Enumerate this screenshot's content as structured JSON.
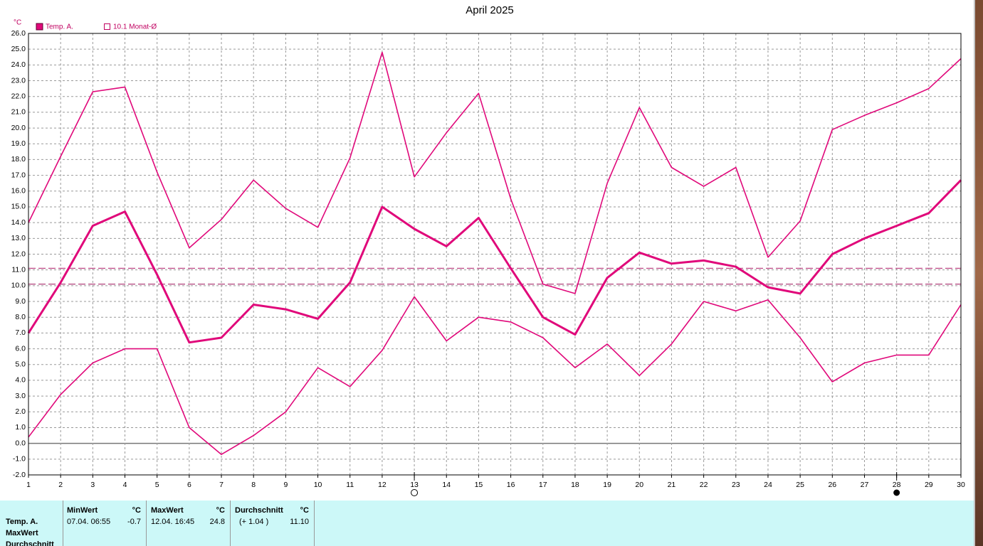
{
  "chart_data": {
    "type": "line",
    "title": "April 2025",
    "y_unit": "°C",
    "legend": [
      "Temp. A.",
      "10.1 Monat-Ø"
    ],
    "x": [
      1,
      2,
      3,
      4,
      5,
      6,
      7,
      8,
      9,
      10,
      11,
      12,
      13,
      14,
      15,
      16,
      17,
      18,
      19,
      20,
      21,
      22,
      23,
      24,
      25,
      26,
      27,
      28,
      29,
      30
    ],
    "xlim": [
      1,
      30
    ],
    "xticks": [
      1,
      2,
      3,
      4,
      5,
      6,
      7,
      8,
      9,
      10,
      11,
      12,
      13,
      14,
      15,
      16,
      17,
      18,
      19,
      20,
      21,
      22,
      23,
      24,
      25,
      26,
      27,
      28,
      29,
      30
    ],
    "ylim": [
      -2,
      26
    ],
    "yticks": [
      {
        "value": -2,
        "label": "-2.0"
      },
      {
        "value": -1,
        "label": "-1.0"
      },
      {
        "value": 0,
        "label": "0.0"
      },
      {
        "value": 1,
        "label": "1.0"
      },
      {
        "value": 2,
        "label": "2.0"
      },
      {
        "value": 3,
        "label": "3.0"
      },
      {
        "value": 4,
        "label": "4.0"
      },
      {
        "value": 5,
        "label": "5.0"
      },
      {
        "value": 6,
        "label": "6.0"
      },
      {
        "value": 7,
        "label": "7.0"
      },
      {
        "value": 8,
        "label": "8.0"
      },
      {
        "value": 9,
        "label": "9.0"
      },
      {
        "value": 10,
        "label": "10.0"
      },
      {
        "value": 11,
        "label": "11.0"
      },
      {
        "value": 12,
        "label": "12.0"
      },
      {
        "value": 13,
        "label": "13.0"
      },
      {
        "value": 14,
        "label": "14.0"
      },
      {
        "value": 15,
        "label": "15.0"
      },
      {
        "value": 16,
        "label": "16.0"
      },
      {
        "value": 17,
        "label": "17.0"
      },
      {
        "value": 18,
        "label": "18.0"
      },
      {
        "value": 19,
        "label": "19.0"
      },
      {
        "value": 20,
        "label": "20.0"
      },
      {
        "value": 21,
        "label": "21.0"
      },
      {
        "value": 22,
        "label": "22.0"
      },
      {
        "value": 23,
        "label": "23.0"
      },
      {
        "value": 24,
        "label": "24.0"
      },
      {
        "value": 25,
        "label": "25.0"
      },
      {
        "value": 26,
        "label": "26.0"
      }
    ],
    "grid": true,
    "series": [
      {
        "color": "#e0087a",
        "width": 1.6,
        "values": [
          14.0,
          18.2,
          22.3,
          22.6,
          17.2,
          12.4,
          14.2,
          16.7,
          14.9,
          13.7,
          18.1,
          24.8,
          16.9,
          19.7,
          22.2,
          15.5,
          10.1,
          9.5,
          16.5,
          21.3,
          17.5,
          16.3,
          17.5,
          11.8,
          14.1,
          19.9,
          20.8,
          21.6,
          22.5,
          24.4
        ]
      },
      {
        "color": "#e0087a",
        "width": 3,
        "values": [
          7.0,
          10.2,
          13.8,
          14.7,
          10.7,
          6.4,
          6.7,
          8.8,
          8.5,
          7.9,
          10.2,
          15.0,
          13.6,
          12.5,
          14.3,
          11.1,
          8.0,
          6.9,
          10.5,
          12.1,
          11.4,
          11.6,
          11.2,
          9.9,
          9.5,
          12.0,
          13.0,
          13.8,
          14.6,
          16.7
        ]
      },
      {
        "color": "#e0087a",
        "width": 1.6,
        "values": [
          0.4,
          3.1,
          5.1,
          6.0,
          6.0,
          1.0,
          -0.7,
          0.5,
          2.0,
          4.8,
          3.6,
          5.9,
          9.3,
          6.5,
          8.0,
          7.7,
          6.7,
          4.8,
          6.3,
          4.3,
          6.3,
          9.0,
          8.4,
          9.1,
          6.7,
          3.9,
          5.1,
          5.6,
          5.6,
          8.8
        ]
      }
    ],
    "reference_lines": [
      {
        "value": 10.1,
        "color": "#b0407a"
      },
      {
        "value": 11.1,
        "color": "#c0508a"
      }
    ],
    "full_moon": 13,
    "new_moon": 28
  },
  "stats": {
    "row_labels": [
      "Temp. A.",
      "MaxWert",
      "Durchschnitt"
    ],
    "columns": [
      {
        "header": "MinWert",
        "unit": "°C",
        "when": "07.04.  06:55",
        "value": "-0.7"
      },
      {
        "header": "MaxWert",
        "unit": "°C",
        "when": "12.04.  16:45",
        "value": "24.8"
      },
      {
        "header": "Durchschnitt",
        "unit": "°C",
        "when": "(+ 1.04 )",
        "value": "11.10"
      }
    ]
  }
}
